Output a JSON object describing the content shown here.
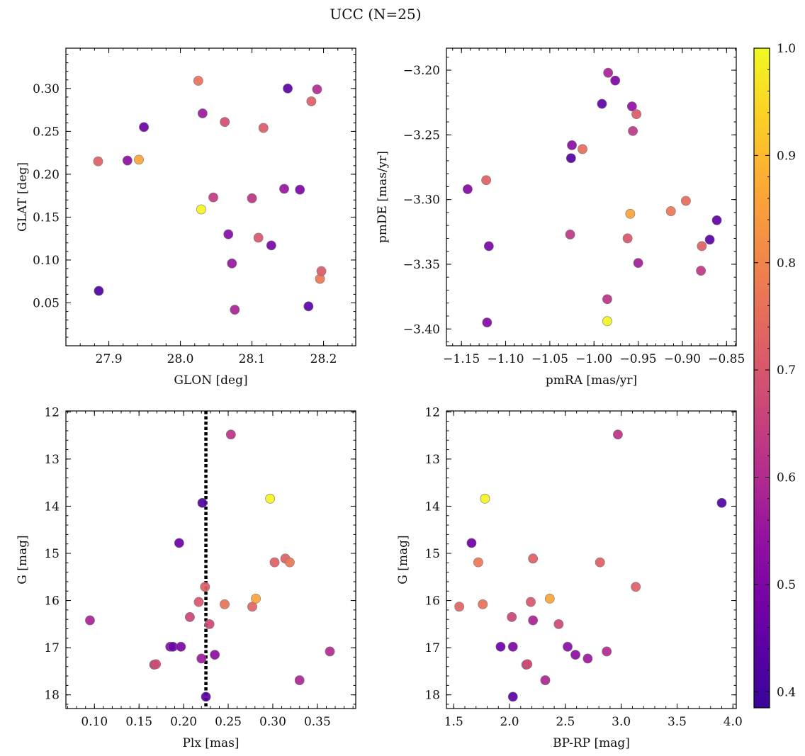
{
  "figure": {
    "title": "UCC (N=25)"
  },
  "colorbar": {
    "min": 0.385,
    "max": 1.0,
    "ticks": [
      0.4,
      0.5,
      0.6,
      0.7,
      0.8,
      0.9,
      1.0
    ],
    "tick_labels": [
      "0.4",
      "0.5",
      "0.6",
      "0.7",
      "0.8",
      "0.9",
      "1.0"
    ],
    "colormap": "plasma"
  },
  "chart_data": [
    {
      "id": "glon-glat",
      "type": "scatter",
      "title": "",
      "xlabel": "GLON [deg]",
      "ylabel": "GLAT [deg]",
      "xlim": [
        27.84,
        28.245
      ],
      "ylim": [
        0.0,
        0.347
      ],
      "yinvert": false,
      "xticks": [
        27.9,
        28.0,
        28.1,
        28.2
      ],
      "xtick_labels": [
        "27.9",
        "28.0",
        "28.1",
        "28.2"
      ],
      "yticks": [
        0.05,
        0.1,
        0.15,
        0.2,
        0.25,
        0.3
      ],
      "ytick_labels": [
        "0.05",
        "0.10",
        "0.15",
        "0.20",
        "0.25",
        "0.30"
      ],
      "xminor": 0.02,
      "yminor": 0.01,
      "points": [
        {
          "x": 27.885,
          "y": 0.215,
          "c": 0.72
        },
        {
          "x": 27.886,
          "y": 0.064,
          "c": 0.42
        },
        {
          "x": 27.926,
          "y": 0.216,
          "c": 0.53
        },
        {
          "x": 27.942,
          "y": 0.217,
          "c": 0.86
        },
        {
          "x": 27.949,
          "y": 0.255,
          "c": 0.47
        },
        {
          "x": 28.025,
          "y": 0.309,
          "c": 0.76
        },
        {
          "x": 28.029,
          "y": 0.159,
          "c": 0.99
        },
        {
          "x": 28.031,
          "y": 0.271,
          "c": 0.56
        },
        {
          "x": 28.046,
          "y": 0.173,
          "c": 0.64
        },
        {
          "x": 28.062,
          "y": 0.261,
          "c": 0.68
        },
        {
          "x": 28.067,
          "y": 0.13,
          "c": 0.52
        },
        {
          "x": 28.072,
          "y": 0.096,
          "c": 0.55
        },
        {
          "x": 28.076,
          "y": 0.042,
          "c": 0.58
        },
        {
          "x": 28.1,
          "y": 0.172,
          "c": 0.62
        },
        {
          "x": 28.109,
          "y": 0.126,
          "c": 0.7
        },
        {
          "x": 28.116,
          "y": 0.254,
          "c": 0.71
        },
        {
          "x": 28.127,
          "y": 0.117,
          "c": 0.49
        },
        {
          "x": 28.145,
          "y": 0.183,
          "c": 0.55
        },
        {
          "x": 28.15,
          "y": 0.3,
          "c": 0.44
        },
        {
          "x": 28.167,
          "y": 0.182,
          "c": 0.5
        },
        {
          "x": 28.179,
          "y": 0.046,
          "c": 0.44
        },
        {
          "x": 28.183,
          "y": 0.285,
          "c": 0.72
        },
        {
          "x": 28.191,
          "y": 0.299,
          "c": 0.6
        },
        {
          "x": 28.195,
          "y": 0.078,
          "c": 0.77
        },
        {
          "x": 28.197,
          "y": 0.087,
          "c": 0.71
        }
      ]
    },
    {
      "id": "pmra-pmde",
      "type": "scatter",
      "title": "",
      "xlabel": "pmRA [mas/yr]",
      "ylabel": "pmDE [mas/yr]",
      "xlim": [
        -1.167,
        -0.839
      ],
      "ylim": [
        -3.413,
        -3.183
      ],
      "yinvert": false,
      "xticks": [
        -1.15,
        -1.1,
        -1.05,
        -1.0,
        -0.95,
        -0.9,
        -0.85
      ],
      "xtick_labels": [
        "−1.15",
        "−1.10",
        "−1.05",
        "−1.00",
        "−0.95",
        "−0.90",
        "−0.85"
      ],
      "yticks": [
        -3.4,
        -3.35,
        -3.3,
        -3.25,
        -3.2
      ],
      "ytick_labels": [
        "−3.40",
        "−3.35",
        "−3.30",
        "−3.25",
        "−3.20"
      ],
      "xminor": 0.01,
      "yminor": 0.01,
      "points": [
        {
          "x": -1.143,
          "y": -3.292,
          "c": 0.51
        },
        {
          "x": -1.122,
          "y": -3.285,
          "c": 0.72
        },
        {
          "x": -1.119,
          "y": -3.336,
          "c": 0.49
        },
        {
          "x": -1.121,
          "y": -3.395,
          "c": 0.51
        },
        {
          "x": -1.025,
          "y": -3.258,
          "c": 0.53
        },
        {
          "x": -1.026,
          "y": -3.268,
          "c": 0.43
        },
        {
          "x": -1.027,
          "y": -3.327,
          "c": 0.63
        },
        {
          "x": -1.013,
          "y": -3.261,
          "c": 0.75
        },
        {
          "x": -0.991,
          "y": -3.226,
          "c": 0.45
        },
        {
          "x": -0.984,
          "y": -3.202,
          "c": 0.58
        },
        {
          "x": -0.976,
          "y": -3.208,
          "c": 0.5
        },
        {
          "x": -0.985,
          "y": -3.377,
          "c": 0.62
        },
        {
          "x": -0.985,
          "y": -3.394,
          "c": 0.99
        },
        {
          "x": -0.962,
          "y": -3.33,
          "c": 0.7
        },
        {
          "x": -0.959,
          "y": -3.311,
          "c": 0.86
        },
        {
          "x": -0.957,
          "y": -3.228,
          "c": 0.54
        },
        {
          "x": -0.956,
          "y": -3.247,
          "c": 0.63
        },
        {
          "x": -0.952,
          "y": -3.234,
          "c": 0.71
        },
        {
          "x": -0.95,
          "y": -3.349,
          "c": 0.57
        },
        {
          "x": -0.913,
          "y": -3.309,
          "c": 0.77
        },
        {
          "x": -0.896,
          "y": -3.301,
          "c": 0.75
        },
        {
          "x": -0.878,
          "y": -3.336,
          "c": 0.72
        },
        {
          "x": -0.879,
          "y": -3.355,
          "c": 0.63
        },
        {
          "x": -0.869,
          "y": -3.331,
          "c": 0.44
        },
        {
          "x": -0.861,
          "y": -3.316,
          "c": 0.45
        }
      ]
    },
    {
      "id": "plx-g",
      "type": "scatter",
      "title": "",
      "xlabel": "Plx [mas]",
      "ylabel": "G [mag]",
      "xlim": [
        0.068,
        0.393
      ],
      "ylim": [
        11.98,
        18.29
      ],
      "yinvert": true,
      "vline": 0.225,
      "xticks": [
        0.1,
        0.15,
        0.2,
        0.25,
        0.3,
        0.35
      ],
      "xtick_labels": [
        "0.10",
        "0.15",
        "0.20",
        "0.25",
        "0.30",
        "0.35"
      ],
      "yticks": [
        12,
        13,
        14,
        15,
        16,
        17,
        18
      ],
      "ytick_labels": [
        "12",
        "13",
        "14",
        "15",
        "16",
        "17",
        "18"
      ],
      "xminor": 0.01,
      "yminor": 0.2,
      "points": [
        {
          "x": 0.095,
          "y": 16.42,
          "c": 0.58
        },
        {
          "x": 0.167,
          "y": 17.36,
          "c": 0.63
        },
        {
          "x": 0.169,
          "y": 17.35,
          "c": 0.68
        },
        {
          "x": 0.185,
          "y": 16.98,
          "c": 0.52
        },
        {
          "x": 0.188,
          "y": 16.98,
          "c": 0.47
        },
        {
          "x": 0.195,
          "y": 14.78,
          "c": 0.47
        },
        {
          "x": 0.197,
          "y": 16.98,
          "c": 0.5
        },
        {
          "x": 0.207,
          "y": 16.35,
          "c": 0.66
        },
        {
          "x": 0.217,
          "y": 16.03,
          "c": 0.7
        },
        {
          "x": 0.22,
          "y": 17.23,
          "c": 0.56
        },
        {
          "x": 0.221,
          "y": 13.93,
          "c": 0.42
        },
        {
          "x": 0.224,
          "y": 15.71,
          "c": 0.72
        },
        {
          "x": 0.225,
          "y": 18.04,
          "c": 0.44
        },
        {
          "x": 0.229,
          "y": 16.5,
          "c": 0.67
        },
        {
          "x": 0.235,
          "y": 17.15,
          "c": 0.53
        },
        {
          "x": 0.246,
          "y": 16.08,
          "c": 0.76
        },
        {
          "x": 0.253,
          "y": 12.48,
          "c": 0.62
        },
        {
          "x": 0.277,
          "y": 16.13,
          "c": 0.73
        },
        {
          "x": 0.281,
          "y": 15.96,
          "c": 0.86
        },
        {
          "x": 0.297,
          "y": 13.84,
          "c": 0.99
        },
        {
          "x": 0.302,
          "y": 15.19,
          "c": 0.72
        },
        {
          "x": 0.314,
          "y": 15.11,
          "c": 0.72
        },
        {
          "x": 0.319,
          "y": 15.19,
          "c": 0.77
        },
        {
          "x": 0.33,
          "y": 17.69,
          "c": 0.59
        },
        {
          "x": 0.364,
          "y": 17.08,
          "c": 0.6
        }
      ]
    },
    {
      "id": "bprp-g",
      "type": "scatter",
      "title": "",
      "xlabel": "BP-RP [mag]",
      "ylabel": "G [mag]",
      "xlim": [
        1.435,
        4.03
      ],
      "ylim": [
        11.98,
        18.29
      ],
      "yinvert": true,
      "xticks": [
        1.5,
        2.0,
        2.5,
        3.0,
        3.5,
        4.0
      ],
      "xtick_labels": [
        "1.5",
        "2.0",
        "2.5",
        "3.0",
        "3.5",
        "4.0"
      ],
      "yticks": [
        12,
        13,
        14,
        15,
        16,
        17,
        18
      ],
      "ytick_labels": [
        "12",
        "13",
        "14",
        "15",
        "16",
        "17",
        "18"
      ],
      "xminor": 0.1,
      "yminor": 0.2,
      "points": [
        {
          "x": 1.55,
          "y": 16.13,
          "c": 0.73
        },
        {
          "x": 1.66,
          "y": 14.78,
          "c": 0.47
        },
        {
          "x": 1.72,
          "y": 15.19,
          "c": 0.77
        },
        {
          "x": 1.76,
          "y": 16.08,
          "c": 0.76
        },
        {
          "x": 1.78,
          "y": 13.84,
          "c": 0.99
        },
        {
          "x": 1.92,
          "y": 16.98,
          "c": 0.47
        },
        {
          "x": 2.02,
          "y": 16.35,
          "c": 0.66
        },
        {
          "x": 2.03,
          "y": 16.98,
          "c": 0.5
        },
        {
          "x": 2.03,
          "y": 18.04,
          "c": 0.44
        },
        {
          "x": 2.15,
          "y": 17.36,
          "c": 0.63
        },
        {
          "x": 2.16,
          "y": 17.35,
          "c": 0.68
        },
        {
          "x": 2.19,
          "y": 16.03,
          "c": 0.7
        },
        {
          "x": 2.21,
          "y": 15.11,
          "c": 0.72
        },
        {
          "x": 2.21,
          "y": 16.42,
          "c": 0.58
        },
        {
          "x": 2.32,
          "y": 17.69,
          "c": 0.59
        },
        {
          "x": 2.36,
          "y": 15.96,
          "c": 0.86
        },
        {
          "x": 2.44,
          "y": 16.5,
          "c": 0.67
        },
        {
          "x": 2.52,
          "y": 16.98,
          "c": 0.52
        },
        {
          "x": 2.59,
          "y": 17.15,
          "c": 0.53
        },
        {
          "x": 2.7,
          "y": 17.23,
          "c": 0.56
        },
        {
          "x": 2.81,
          "y": 15.19,
          "c": 0.72
        },
        {
          "x": 2.87,
          "y": 17.08,
          "c": 0.6
        },
        {
          "x": 2.97,
          "y": 12.48,
          "c": 0.62
        },
        {
          "x": 3.13,
          "y": 15.71,
          "c": 0.72
        },
        {
          "x": 3.9,
          "y": 13.93,
          "c": 0.42
        }
      ]
    }
  ]
}
